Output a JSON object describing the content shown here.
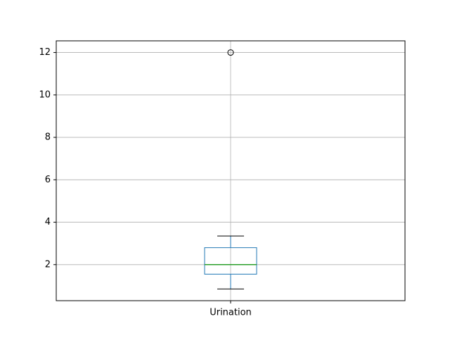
{
  "chart_data": {
    "type": "box",
    "categories": [
      "Urination"
    ],
    "series": [
      {
        "name": "Urination",
        "whisker_low": 0.85,
        "q1": 1.55,
        "median": 2.0,
        "q3": 2.8,
        "whisker_high": 3.35,
        "outliers": [
          12.0
        ]
      }
    ],
    "title": "",
    "xlabel": "",
    "ylabel": "",
    "ylim": [
      0.3,
      12.55
    ],
    "yticks": [
      2,
      4,
      6,
      8,
      10,
      12
    ],
    "ytick_labels": [
      "2",
      "4",
      "6",
      "8",
      "10",
      "12"
    ],
    "grid": true,
    "colors": {
      "box": "#1f77b4",
      "median": "#2ca02c",
      "whisker": "#1f77b4",
      "cap": "#000000",
      "outlier": "#000000",
      "grid": "#b0b0b0",
      "axes": "#000000"
    }
  }
}
